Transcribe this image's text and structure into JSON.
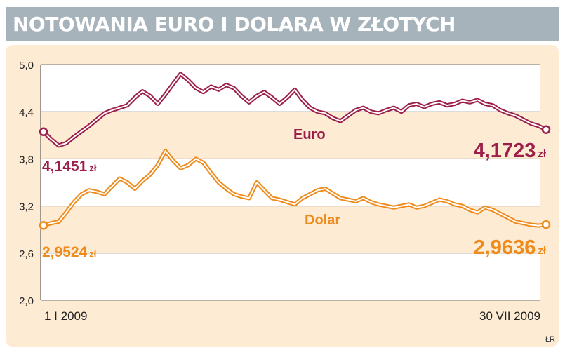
{
  "title": "NOTOWANIA EURO I DOLARA W ZŁOTYCH",
  "credit": "ŁR",
  "colors": {
    "title_bar": "#a6b3bb",
    "panel": "#fdebd3",
    "euro": "#9c1f4a",
    "dolar": "#ee8b1c"
  },
  "chart_data": {
    "type": "line",
    "title": "NOTOWANIA EURO I DOLARA W ZŁOTYCH",
    "xlabel": "",
    "ylabel": "",
    "ylim": [
      2.0,
      5.0
    ],
    "yticks": [
      "5,0",
      "4,4",
      "3,8",
      "3,2",
      "2,6",
      "2,0"
    ],
    "grid": true,
    "x_start_label": "1 I 2009",
    "x_end_label": "30 VII 2009",
    "series": [
      {
        "name": "Euro",
        "start_label": "4,1451",
        "end_label": "4,1723",
        "unit": "zł",
        "values": [
          4.1451,
          4.05,
          3.97,
          4.0,
          4.08,
          4.15,
          4.22,
          4.3,
          4.38,
          4.42,
          4.45,
          4.48,
          4.58,
          4.66,
          4.6,
          4.5,
          4.62,
          4.75,
          4.88,
          4.8,
          4.7,
          4.65,
          4.72,
          4.68,
          4.74,
          4.7,
          4.6,
          4.52,
          4.6,
          4.65,
          4.58,
          4.5,
          4.58,
          4.68,
          4.55,
          4.45,
          4.4,
          4.38,
          4.32,
          4.28,
          4.35,
          4.42,
          4.45,
          4.4,
          4.38,
          4.42,
          4.45,
          4.4,
          4.48,
          4.5,
          4.46,
          4.5,
          4.52,
          4.48,
          4.5,
          4.54,
          4.52,
          4.55,
          4.5,
          4.48,
          4.42,
          4.38,
          4.35,
          4.3,
          4.25,
          4.22,
          4.1723
        ]
      },
      {
        "name": "Dolar",
        "start_label": "2,9524",
        "end_label": "2,9636",
        "unit": "zł",
        "values": [
          2.9524,
          2.98,
          3.0,
          3.12,
          3.25,
          3.35,
          3.4,
          3.38,
          3.35,
          3.45,
          3.55,
          3.5,
          3.42,
          3.52,
          3.6,
          3.72,
          3.9,
          3.78,
          3.68,
          3.72,
          3.8,
          3.75,
          3.62,
          3.5,
          3.42,
          3.35,
          3.32,
          3.3,
          3.5,
          3.4,
          3.3,
          3.28,
          3.25,
          3.22,
          3.3,
          3.35,
          3.4,
          3.42,
          3.36,
          3.3,
          3.28,
          3.26,
          3.3,
          3.25,
          3.22,
          3.2,
          3.18,
          3.2,
          3.22,
          3.18,
          3.2,
          3.24,
          3.28,
          3.26,
          3.22,
          3.2,
          3.15,
          3.12,
          3.18,
          3.15,
          3.1,
          3.05,
          3.0,
          2.98,
          2.96,
          2.95,
          2.9636
        ]
      }
    ]
  }
}
